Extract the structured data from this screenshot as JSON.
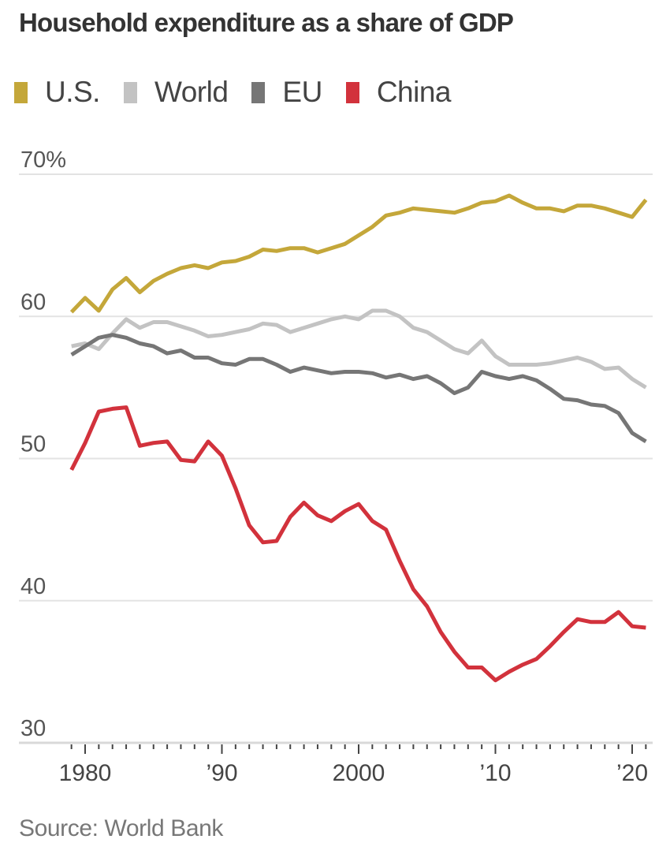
{
  "title": "Household expenditure as a share of GDP",
  "source": "Source: World Bank",
  "legend": [
    {
      "label": "U.S.",
      "color": "#c4a73a"
    },
    {
      "label": "World",
      "color": "#c3c3c3"
    },
    {
      "label": "EU",
      "color": "#767676"
    },
    {
      "label": "China",
      "color": "#d2323c"
    }
  ],
  "chart_data": {
    "type": "line",
    "title": "Household expenditure as a share of GDP",
    "xlabel": "",
    "ylabel": "",
    "x": [
      1979,
      1980,
      1981,
      1982,
      1983,
      1984,
      1985,
      1986,
      1987,
      1988,
      1989,
      1990,
      1991,
      1992,
      1993,
      1994,
      1995,
      1996,
      1997,
      1998,
      1999,
      2000,
      2001,
      2002,
      2003,
      2004,
      2005,
      2006,
      2007,
      2008,
      2009,
      2010,
      2011,
      2012,
      2013,
      2014,
      2015,
      2016,
      2017,
      2018,
      2019,
      2020,
      2021
    ],
    "xlim": [
      1979,
      2021
    ],
    "ylim": [
      30,
      70
    ],
    "yticks": [
      {
        "value": 70,
        "label": "70%"
      },
      {
        "value": 60,
        "label": "60"
      },
      {
        "value": 50,
        "label": "50"
      },
      {
        "value": 40,
        "label": "40"
      },
      {
        "value": 30,
        "label": "30"
      }
    ],
    "xticks": [
      {
        "value": 1980,
        "label": "1980"
      },
      {
        "value": 1990,
        "label": "’90"
      },
      {
        "value": 2000,
        "label": "2000"
      },
      {
        "value": 2010,
        "label": "’10"
      },
      {
        "value": 2020,
        "label": "’20"
      }
    ],
    "grid": true,
    "legend_position": "top-left",
    "series": [
      {
        "name": "U.S.",
        "color": "#c4a73a",
        "values": [
          60.3,
          61.3,
          60.4,
          61.9,
          62.7,
          61.7,
          62.5,
          63.0,
          63.4,
          63.6,
          63.4,
          63.8,
          63.9,
          64.2,
          64.7,
          64.6,
          64.8,
          64.8,
          64.5,
          64.8,
          65.1,
          65.7,
          66.3,
          67.1,
          67.3,
          67.6,
          67.5,
          67.4,
          67.3,
          67.6,
          68.0,
          68.1,
          68.5,
          68.0,
          67.6,
          67.6,
          67.4,
          67.8,
          67.8,
          67.6,
          67.3,
          67.0,
          68.2
        ]
      },
      {
        "name": "World",
        "color": "#c3c3c3",
        "values": [
          57.9,
          58.1,
          57.7,
          58.8,
          59.8,
          59.2,
          59.6,
          59.6,
          59.3,
          59.0,
          58.6,
          58.7,
          58.9,
          59.1,
          59.5,
          59.4,
          58.9,
          59.2,
          59.5,
          59.8,
          60.0,
          59.8,
          60.4,
          60.4,
          60.0,
          59.2,
          58.9,
          58.3,
          57.7,
          57.4,
          58.3,
          57.2,
          56.6,
          56.6,
          56.6,
          56.7,
          56.9,
          57.1,
          56.8,
          56.3,
          56.4,
          55.6,
          55.0
        ]
      },
      {
        "name": "EU",
        "color": "#767676",
        "values": [
          57.3,
          57.9,
          58.5,
          58.7,
          58.5,
          58.1,
          57.9,
          57.4,
          57.6,
          57.1,
          57.1,
          56.7,
          56.6,
          57.0,
          57.0,
          56.6,
          56.1,
          56.4,
          56.2,
          56.0,
          56.1,
          56.1,
          56.0,
          55.7,
          55.9,
          55.6,
          55.8,
          55.3,
          54.6,
          55.0,
          56.1,
          55.8,
          55.6,
          55.8,
          55.5,
          54.9,
          54.2,
          54.1,
          53.8,
          53.7,
          53.2,
          51.8,
          51.2
        ]
      },
      {
        "name": "China",
        "color": "#d2323c",
        "values": [
          49.2,
          51.1,
          53.3,
          53.5,
          53.6,
          50.9,
          51.1,
          51.2,
          49.9,
          49.8,
          51.2,
          50.2,
          47.9,
          45.3,
          44.1,
          44.2,
          45.9,
          46.9,
          46.0,
          45.6,
          46.3,
          46.8,
          45.6,
          45.0,
          42.8,
          40.8,
          39.6,
          37.8,
          36.4,
          35.3,
          35.3,
          34.4,
          35.0,
          35.5,
          35.9,
          36.8,
          37.8,
          38.7,
          38.5,
          38.5,
          39.2,
          38.2,
          38.1
        ]
      }
    ]
  }
}
